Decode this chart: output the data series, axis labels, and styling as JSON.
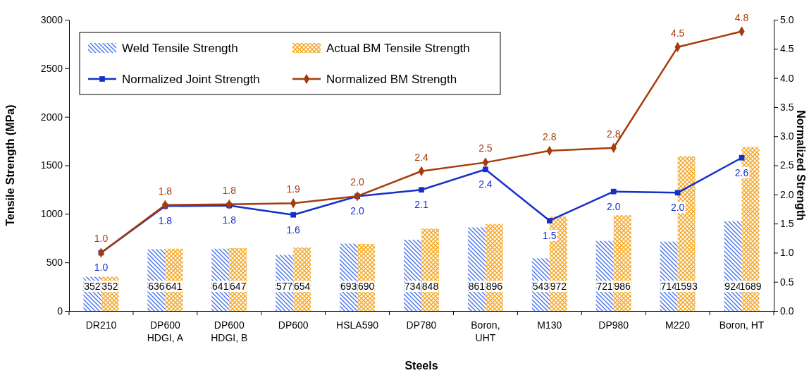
{
  "chart_data": {
    "type": "bar",
    "xlabel": "Steels",
    "ylabel": "Tensile Strength (MPa)",
    "y2label": "Normalized Strength",
    "categories": [
      "DR210",
      "DP600\nHDGI, A",
      "DP600\nHDGI, B",
      "DP600",
      "HSLA590",
      "DP780",
      "Boron,\nUHT",
      "M130",
      "DP980",
      "M220",
      "Boron, HT"
    ],
    "ylim": [
      0,
      3000
    ],
    "yticks": [
      0,
      500,
      1000,
      1500,
      2000,
      2500,
      3000
    ],
    "y2lim": [
      0,
      5
    ],
    "y2ticks": [
      {
        "value": 0,
        "label": "0.0"
      },
      {
        "value": 0.5,
        "label": "0.5"
      },
      {
        "value": 1,
        "label": "1.0"
      },
      {
        "value": 1.5,
        "label": "1.5"
      },
      {
        "value": 2,
        "label": "2.0"
      },
      {
        "value": 2.5,
        "label": "2.5"
      },
      {
        "value": 3,
        "label": "3.0"
      },
      {
        "value": 3.5,
        "label": "3.5"
      },
      {
        "value": 4,
        "label": "4.0"
      },
      {
        "value": 4.5,
        "label": "4.5"
      },
      {
        "value": 5,
        "label": "5.0"
      }
    ],
    "grid": false,
    "legend": "top left",
    "series": [
      {
        "name": "Weld Tensile Strength",
        "color": "#4a74e8",
        "values": [
          352,
          636,
          641,
          577,
          693,
          734,
          861,
          543,
          721,
          714,
          924
        ],
        "value_labels": [
          "352",
          "636",
          "641",
          "577",
          "693",
          "734",
          "861",
          "543",
          "721",
          "714",
          "924"
        ]
      },
      {
        "name": "Actual BM Tensile Strength",
        "color": "#f5a623",
        "values": [
          352,
          641,
          647,
          654,
          690,
          848,
          896,
          972,
          986,
          1593,
          1689
        ],
        "value_labels": [
          "352",
          "641",
          "647",
          "654",
          "690",
          "848",
          "896",
          "972",
          "986",
          "1593",
          "1689"
        ]
      },
      {
        "name": "Normalized Joint Strength",
        "type": "line",
        "axis": "y2",
        "color": "#1530c8",
        "marker": "square",
        "values": [
          1.0,
          1.8,
          1.81,
          1.65,
          1.97,
          2.08,
          2.43,
          1.55,
          2.05,
          2.03,
          2.63
        ],
        "value_labels": [
          "1.0",
          "1.8",
          "1.8",
          "1.6",
          "2.0",
          "2.1",
          "2.4",
          "1.5",
          "2.0",
          "2.0",
          "2.6"
        ]
      },
      {
        "name": "Normalized BM Strength",
        "type": "line",
        "axis": "y2",
        "color": "#a63c0c",
        "marker": "diamond",
        "values": [
          1.0,
          1.82,
          1.83,
          1.85,
          1.97,
          2.4,
          2.55,
          2.75,
          2.8,
          4.53,
          4.8
        ],
        "value_labels": [
          "1.0",
          "1.8",
          "1.8",
          "1.9",
          "2.0",
          "2.4",
          "2.5",
          "2.8",
          "2.8",
          "4.5",
          "4.8"
        ]
      }
    ]
  }
}
